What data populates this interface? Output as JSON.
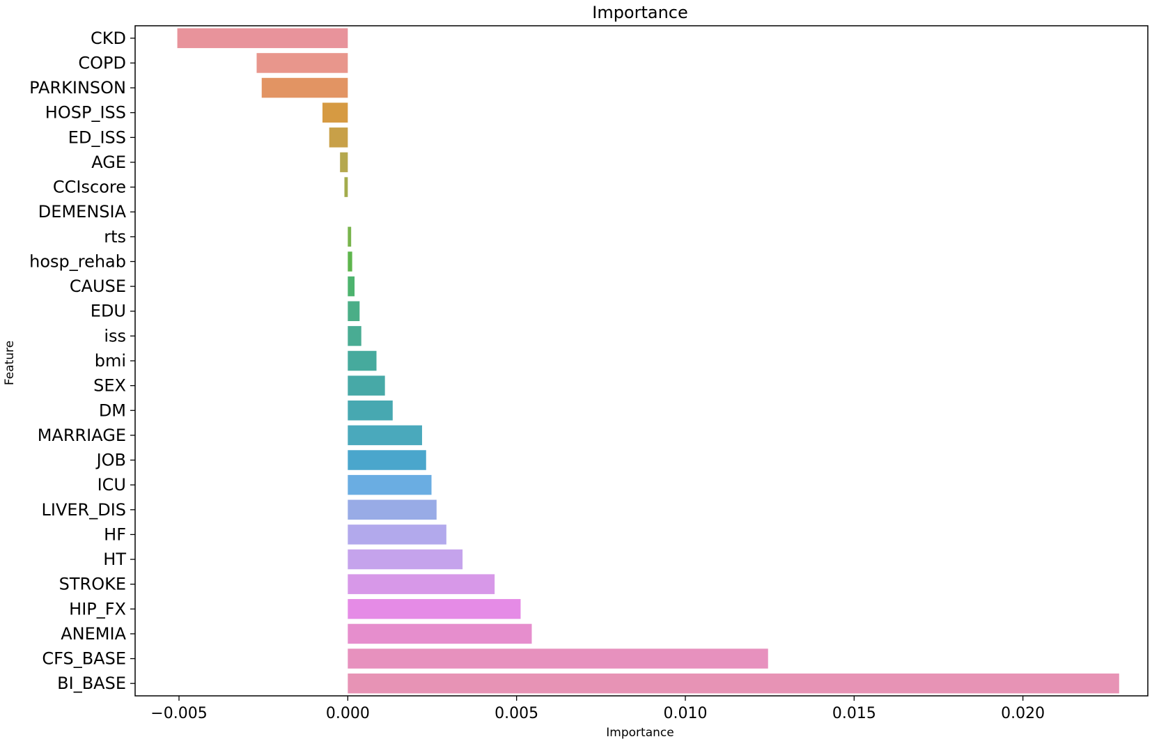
{
  "chart_data": {
    "type": "bar",
    "orientation": "horizontal",
    "title": "Importance",
    "xlabel": "Importance",
    "ylabel": "Feature",
    "xlim": [
      -0.0063,
      0.0237
    ],
    "xticks": [
      -0.005,
      0.0,
      0.005,
      0.01,
      0.015,
      0.02
    ],
    "xtick_labels": [
      "−0.005",
      "0.000",
      "0.005",
      "0.010",
      "0.015",
      "0.020"
    ],
    "grid": false,
    "legend": "none",
    "categories": [
      "CKD",
      "COPD",
      "PARKINSON",
      "HOSP_ISS",
      "ED_ISS",
      "AGE",
      "CCIscore",
      "DEMENSIA",
      "rts",
      "hosp_rehab",
      "CAUSE",
      "EDU",
      "iss",
      "bmi",
      "SEX",
      "DM",
      "MARRIAGE",
      "JOB",
      "ICU",
      "LIVER_DIS",
      "HF",
      "HT",
      "STROKE",
      "HIP_FX",
      "ANEMIA",
      "CFS_BASE",
      "BI_BASE"
    ],
    "values": [
      -0.00505,
      -0.0027,
      -0.00255,
      -0.00075,
      -0.00055,
      -0.00023,
      -0.0001,
      0.0,
      0.0001,
      0.00013,
      0.0002,
      0.00035,
      0.0004,
      0.00085,
      0.0011,
      0.00133,
      0.0022,
      0.00232,
      0.00248,
      0.00263,
      0.00292,
      0.0034,
      0.00435,
      0.00512,
      0.00545,
      0.01245,
      0.02285
    ],
    "colors": [
      "#e8939b",
      "#e8968c",
      "#e29463",
      "#d69a42",
      "#c8a048",
      "#b5a84e",
      "#a3ac4d",
      "#8fb24e",
      "#78b44d",
      "#5eb54d",
      "#4db36e",
      "#4aae87",
      "#49ac93",
      "#46aa9d",
      "#47a9a7",
      "#47a8b1",
      "#4aa9bc",
      "#4aa6cc",
      "#6aade2",
      "#98abe6",
      "#b2a9ec",
      "#c5a3ec",
      "#d798e8",
      "#e58be6",
      "#e68ecd",
      "#e791be",
      "#e793b5"
    ]
  }
}
